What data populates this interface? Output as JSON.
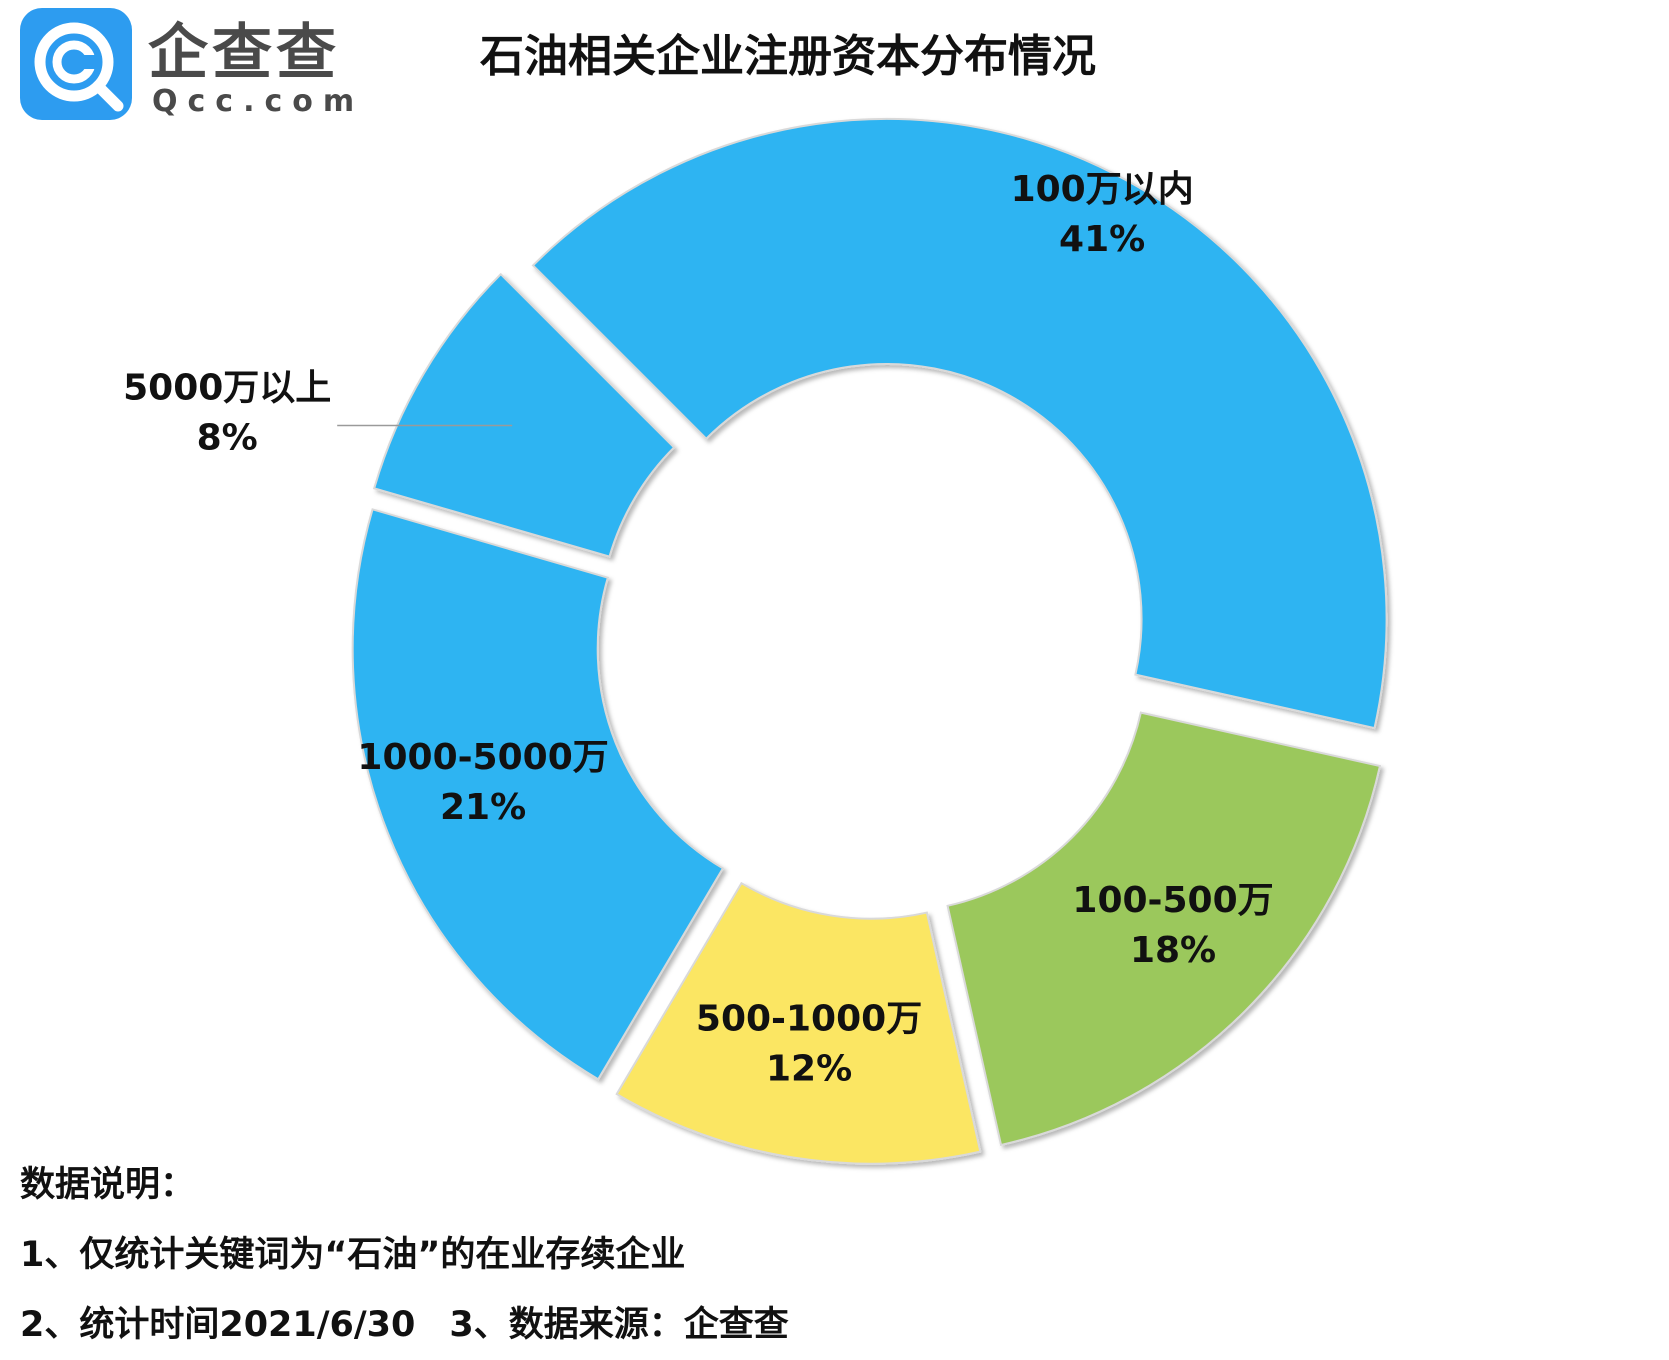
{
  "logo": {
    "name": "企查查",
    "domain": "Qcc.com",
    "brand_color": "#2d9cf0"
  },
  "title": "石油相关企业注册资本分布情况",
  "chart_data": {
    "type": "pie",
    "title": "石油相关企业注册资本分布情况",
    "donut": true,
    "exploded": true,
    "slices": [
      {
        "label": "100万以内",
        "value": 41,
        "value_label": "41%",
        "color": "#2db4f2"
      },
      {
        "label": "100-500万",
        "value": 18,
        "value_label": "18%",
        "color": "#9bc85b"
      },
      {
        "label": "500-1000万",
        "value": 12,
        "value_label": "12%",
        "color": "#fbe663"
      },
      {
        "label": "1000-5000万",
        "value": 21,
        "value_label": "21%",
        "color": "#2db4f2"
      },
      {
        "label": "5000万以上",
        "value": 8,
        "value_label": "8%",
        "color": "#2db4f2"
      }
    ]
  },
  "notes": {
    "heading": "数据说明：",
    "line1": "1、仅统计关键词为“石油”的在业存续企业",
    "line2_a": "2、统计时间2021/6/30",
    "line2_b": "3、数据来源：企查查"
  }
}
